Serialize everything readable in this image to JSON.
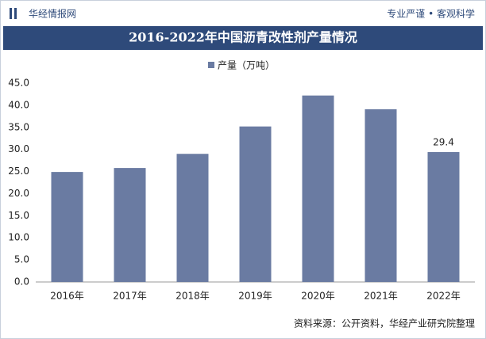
{
  "header": {
    "brand": "华经情报网",
    "slogan": "专业严谨 • 客观科学"
  },
  "chart_data": {
    "type": "bar",
    "title": "2016-2022年中国沥青改性剂产量情况",
    "categories": [
      "2016年",
      "2017年",
      "2018年",
      "2019年",
      "2020年",
      "2021年",
      "2022年"
    ],
    "series": [
      {
        "name": "产量（万吨）",
        "color": "#6a7ba2",
        "values": [
          24.9,
          25.8,
          29.0,
          35.2,
          42.2,
          39.1,
          29.4
        ],
        "value_labels": [
          null,
          null,
          null,
          null,
          null,
          null,
          "29.4"
        ]
      }
    ],
    "ylim": [
      0,
      45
    ],
    "yticks": [
      {
        "value": 0,
        "label": "0.0"
      },
      {
        "value": 5,
        "label": "5.0"
      },
      {
        "value": 10,
        "label": "10.0"
      },
      {
        "value": 15,
        "label": "15.0"
      },
      {
        "value": 20,
        "label": "20.0"
      },
      {
        "value": 25,
        "label": "25.0"
      },
      {
        "value": 30,
        "label": "30.0"
      },
      {
        "value": 35,
        "label": "35.0"
      },
      {
        "value": 40,
        "label": "40.0"
      },
      {
        "value": 45,
        "label": "45.0"
      }
    ],
    "grid": false,
    "legend": "top",
    "source": "资料来源：公开资料，华经产业研究院整理"
  }
}
